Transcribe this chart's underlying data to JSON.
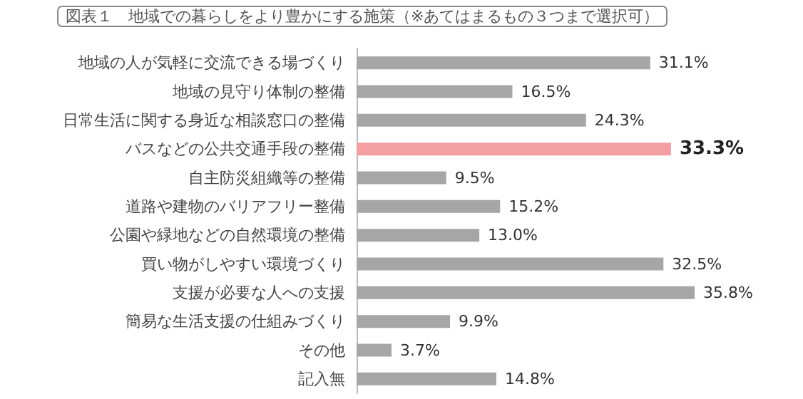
{
  "chart_data": {
    "type": "bar",
    "orientation": "horizontal",
    "title": "図表１　地域での暮らしをより豊かにする施策（※あてはまるもの３つまで選択可）",
    "categories": [
      "地域の人が気軽に交流できる場づくり",
      "地域の見守り体制の整備",
      "日常生活に関する身近な相談窓口の整備",
      "バスなどの公共交通手段の整備",
      "自主防災組織等の整備",
      "道路や建物のバリアフリー整備",
      "公園や緑地などの自然環境の整備",
      "買い物がしやすい環境づくり",
      "支援が必要な人への支援",
      "簡易な生活支援の仕組みづくり",
      "その他",
      "記入無"
    ],
    "values": [
      31.1,
      16.5,
      24.3,
      33.3,
      9.5,
      15.2,
      13.0,
      32.5,
      35.8,
      9.9,
      3.7,
      14.8
    ],
    "colors": [
      "#a6a6a6",
      "#a6a6a6",
      "#a6a6a6",
      "#f4a0a3",
      "#a6a6a6",
      "#a6a6a6",
      "#a6a6a6",
      "#a6a6a6",
      "#a6a6a6",
      "#a6a6a6",
      "#a6a6a6",
      "#a6a6a6"
    ],
    "value_labels": [
      "31.1%",
      "16.5%",
      "24.3%",
      "33.3%",
      "9.5%",
      "15.2%",
      "13.0%",
      "32.5%",
      "35.8%",
      "9.9%",
      "3.7%",
      "14.8%"
    ],
    "relative": false
  }
}
